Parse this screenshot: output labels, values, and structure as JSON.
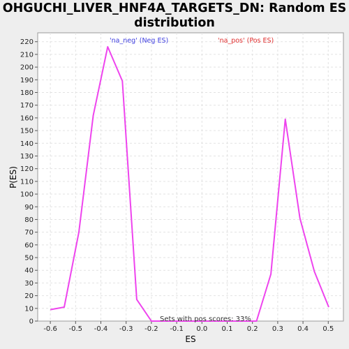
{
  "chart_data": {
    "type": "line",
    "title": "OHGUCHI_LIVER_HNF4A_TARGETS_DN: Random ES distribution",
    "xlabel": "ES",
    "ylabel": "P(ES)",
    "xlim": [
      -0.65,
      0.56
    ],
    "ylim": [
      0,
      227
    ],
    "x_ticks": [
      "-0.6",
      "-0.5",
      "-0.4",
      "-0.3",
      "-0.2",
      "-0.1",
      "0.0",
      "0.1",
      "0.2",
      "0.3",
      "0.4",
      "0.5"
    ],
    "y_ticks": [
      "0",
      "10",
      "20",
      "30",
      "40",
      "50",
      "60",
      "70",
      "80",
      "90",
      "100",
      "110",
      "120",
      "130",
      "140",
      "150",
      "160",
      "170",
      "180",
      "190",
      "200",
      "210",
      "220"
    ],
    "grid": true,
    "legend": {
      "neg_label": "'na_neg' (Neg ES)",
      "pos_label": "'na_pos' (Pos ES)",
      "neg_color": "#4040e0",
      "pos_color": "#e03030"
    },
    "annotation": "Sets with pos scores: 33%",
    "line_color": "#ee44ee",
    "series": [
      {
        "x": [
          -0.6,
          -0.545,
          -0.487,
          -0.43,
          -0.373,
          -0.315,
          -0.258,
          -0.2,
          -0.143,
          -0.086,
          -0.028,
          0.029,
          0.086,
          0.144,
          0.2,
          0.216,
          0.273,
          0.33,
          0.388,
          0.445,
          0.502
        ],
        "y": [
          9,
          11,
          70,
          162,
          216,
          189,
          17,
          0,
          0,
          0,
          0,
          0,
          0,
          0,
          0,
          0,
          37,
          159,
          81,
          39,
          11
        ]
      }
    ]
  }
}
